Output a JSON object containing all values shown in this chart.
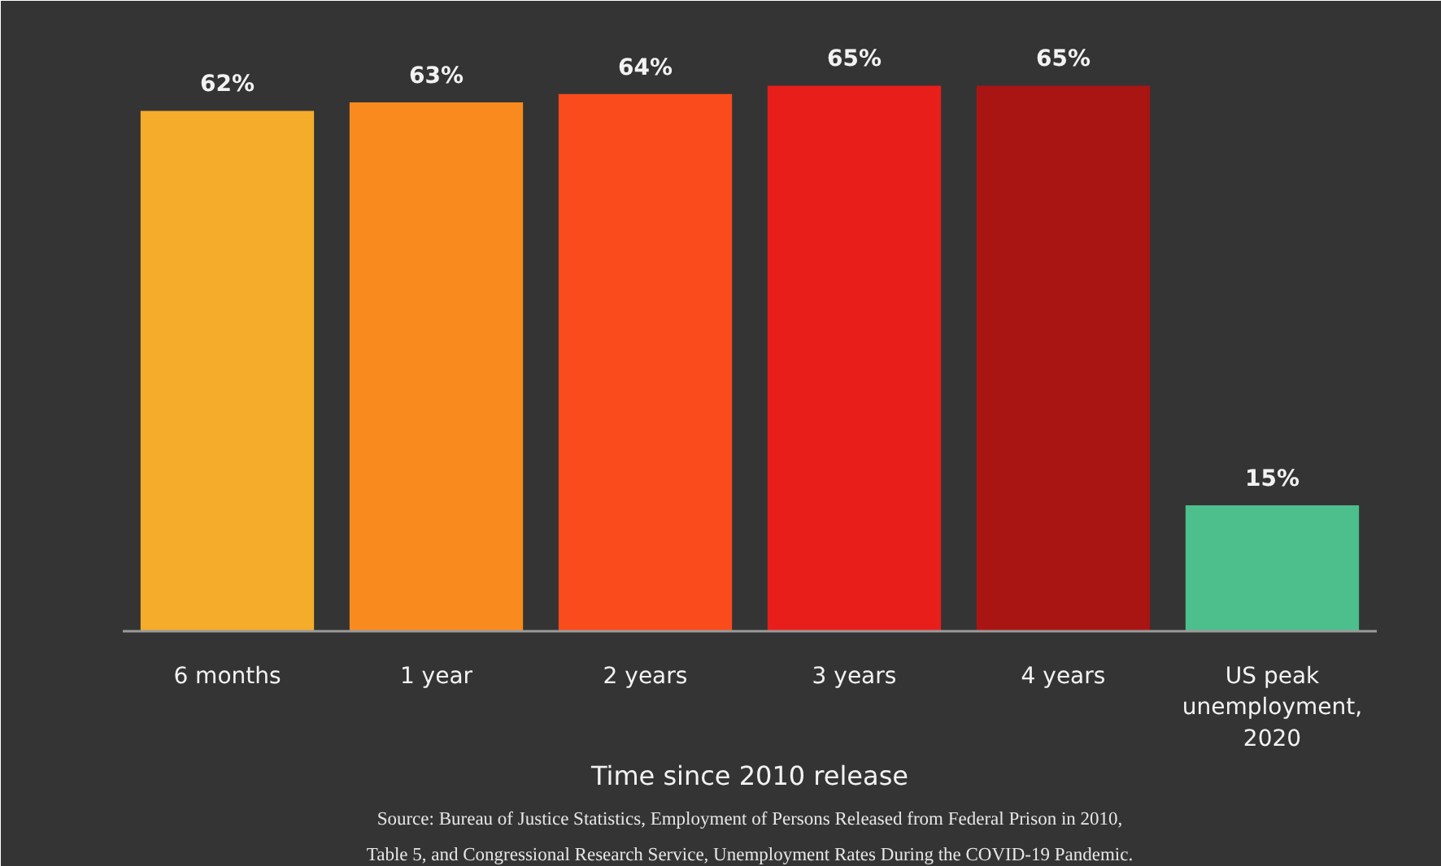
{
  "chart_data": {
    "type": "bar",
    "categories": [
      "6 months",
      "1 year",
      "2 years",
      "3 years",
      "4 years",
      "US peak unemployment, 2020"
    ],
    "values": [
      62,
      63,
      64,
      65,
      65,
      15
    ],
    "colors": [
      "#f5ac2a",
      "#f98a1e",
      "#fa4b1c",
      "#e81e1a",
      "#a81512",
      "#4cbf8c"
    ],
    "data_labels": true,
    "value_labels": [
      "62%",
      "63%",
      "64%",
      "65%",
      "65%",
      "15%"
    ],
    "xlabel": "Time since 2010 release",
    "annotations": [
      "Source: Bureau of Justice Statistics, Employment of Persons Released from Federal Prison in 2010,",
      "Table 5, and Congressional Research Service, Unemployment Rates During the COVID-19 Pandemic."
    ],
    "grid": false
  }
}
